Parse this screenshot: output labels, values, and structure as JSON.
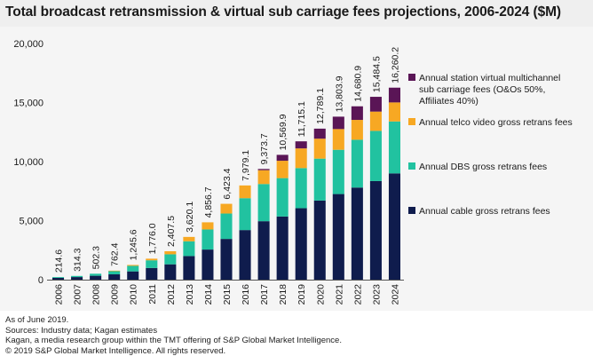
{
  "chart_data": {
    "type": "bar",
    "stacked": true,
    "title": "Total broadcast retransmission & virtual sub carriage fees projections, 2006-2024 ($M)",
    "categories": [
      "2006",
      "2007",
      "2008",
      "2009",
      "2010",
      "2011",
      "2012",
      "2013",
      "2014",
      "2015",
      "2016",
      "2017",
      "2018",
      "2019",
      "2020",
      "2021",
      "2022",
      "2023",
      "2024"
    ],
    "totals_labels": [
      "214.6",
      "314.3",
      "502.3",
      "762.4",
      "1,245.6",
      "1,776.0",
      "2,407.5",
      "3,620.1",
      "4,856.7",
      "6,423.4",
      "7,979.1",
      "9,373.7",
      "10,569.9",
      "11,715.1",
      "12,789.1",
      "13,803.9",
      "14,680.9",
      "15,484.5",
      "16,260.2"
    ],
    "series": [
      {
        "name": "Annual cable gross retrans fees",
        "color": "#0f1c4d",
        "values": [
          150,
          220,
          330,
          450,
          700,
          990,
          1300,
          2000,
          2550,
          3450,
          4200,
          4950,
          5350,
          6050,
          6700,
          7250,
          7800,
          8350,
          9000
        ]
      },
      {
        "name": "Annual DBS gross retrans fees",
        "color": "#21c2a0",
        "values": [
          64.6,
          94.3,
          172.3,
          300,
          470,
          650,
          850,
          1250,
          1700,
          2150,
          2700,
          3150,
          3250,
          3400,
          3550,
          3750,
          4050,
          4250,
          4400
        ]
      },
      {
        "name": "Annual telco video gross retrans fees",
        "color": "#f7a823",
        "values": [
          0,
          0,
          0,
          12.4,
          75.6,
          136,
          257.5,
          370.1,
          606.7,
          823.4,
          1079.1,
          1173.7,
          1469.9,
          1665.1,
          1689.1,
          1753.9,
          1680.9,
          1634.5,
          1610.2
        ]
      },
      {
        "name": "Annual station virtual multichannel sub carriage fees (O&Os 50%, Affiliates 40%)",
        "color": "#5a1556",
        "values": [
          0,
          0,
          0,
          0,
          0,
          0,
          0,
          0,
          0,
          0,
          0,
          100,
          500,
          600,
          850,
          1050,
          1150,
          1250,
          1250
        ]
      }
    ],
    "legend_order": [
      3,
      2,
      1,
      0
    ],
    "legend_lines": [
      [
        "Annual station virtual multichannel",
        "sub carriage fees (O&Os 50%,",
        "Affiliates 40%)"
      ],
      [
        "Annual telco video gross retrans fees"
      ],
      [
        "Annual DBS gross retrans fees"
      ],
      [
        "Annual cable gross retrans fees"
      ]
    ],
    "ylim": [
      0,
      20000
    ],
    "yticks": [
      0,
      5000,
      10000,
      15000,
      20000
    ],
    "ytick_labels": [
      "0",
      "5,000",
      "10,000",
      "15,000",
      "20,000"
    ],
    "xlabel": "",
    "ylabel": ""
  },
  "notes": [
    "As of June 2019.",
    "Sources: Industry data; Kagan estimates",
    "Kagan, a media research group within the TMT offering of S&P Global Market Intelligence.",
    "© 2019 S&P Global Market Intelligence. All rights reserved."
  ]
}
